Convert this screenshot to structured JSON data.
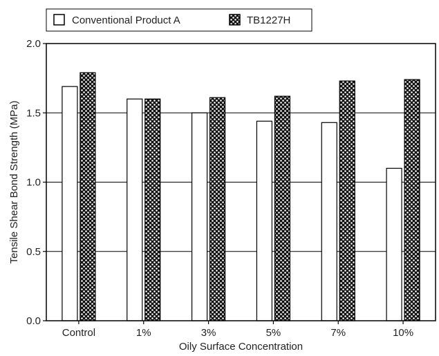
{
  "chart_data": {
    "type": "bar",
    "categories": [
      "Control",
      "1%",
      "3%",
      "5%",
      "7%",
      "10%"
    ],
    "series": [
      {
        "name": "Conventional Product A",
        "values": [
          1.69,
          1.6,
          1.5,
          1.44,
          1.43,
          1.1
        ],
        "pattern": "hollow"
      },
      {
        "name": "TB1227H",
        "values": [
          1.79,
          1.6,
          1.61,
          1.62,
          1.73,
          1.74
        ],
        "pattern": "checkered"
      }
    ],
    "title": "",
    "xlabel": "Oily Surface Concentration",
    "ylabel": "Tensile Shear Bond Strength (MPa)",
    "ylim": [
      0,
      2.0
    ],
    "yticks": [
      "0.0",
      "0.5",
      "1.0",
      "1.5",
      "2.0"
    ],
    "grid": "horizontal",
    "legend_position": "top-left, outside plot"
  }
}
